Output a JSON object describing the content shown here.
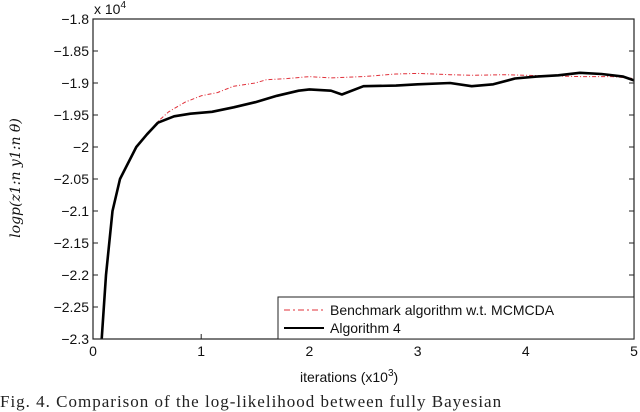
{
  "chart_data": {
    "type": "line",
    "title": "",
    "xlabel": "iterations (x10^3)",
    "xlabel_main": "iterations (x10",
    "xlabel_sup": "3",
    "xlabel_end": ")",
    "ylabel": "log p(z_{1:n} y_{1:n} θ)",
    "ylabel_text": "logp(z1:n y1:n θ)",
    "y_multiplier": "x 10",
    "y_multiplier_exp": "4",
    "xlim": [
      0,
      5
    ],
    "ylim": [
      -2.3,
      -1.8
    ],
    "xticks": [
      "0",
      "1",
      "2",
      "3",
      "4",
      "5"
    ],
    "yticks": [
      "-1.8",
      "-1.85",
      "-1.9",
      "-1.95",
      "-2",
      "-2.05",
      "-2.1",
      "-2.15",
      "-2.2",
      "-2.25",
      "-2.3"
    ],
    "grid": false,
    "legend_position": "lower right",
    "series": [
      {
        "name": "Benchmark algorithm w.t. MCMCDA",
        "color": "#e0303a",
        "style": "dash-dot",
        "x": [
          0.08,
          0.12,
          0.18,
          0.25,
          0.4,
          0.5,
          0.6,
          0.7,
          0.85,
          1.0,
          1.15,
          1.3,
          1.5,
          1.6,
          1.8,
          2.0,
          2.2,
          2.5,
          2.8,
          3.0,
          3.3,
          3.5,
          3.8,
          4.0,
          4.3,
          4.5,
          4.8,
          5.0
        ],
        "values": [
          -2.3,
          -2.2,
          -2.1,
          -2.05,
          -2.0,
          -1.98,
          -1.96,
          -1.945,
          -1.93,
          -1.92,
          -1.915,
          -1.905,
          -1.9,
          -1.895,
          -1.893,
          -1.89,
          -1.892,
          -1.89,
          -1.886,
          -1.885,
          -1.887,
          -1.888,
          -1.887,
          -1.888,
          -1.889,
          -1.89,
          -1.89,
          -1.893
        ]
      },
      {
        "name": "Algorithm 4",
        "color": "#000000",
        "style": "solid",
        "x": [
          0.08,
          0.12,
          0.18,
          0.25,
          0.4,
          0.5,
          0.6,
          0.75,
          0.9,
          1.1,
          1.3,
          1.5,
          1.7,
          1.9,
          2.0,
          2.2,
          2.3,
          2.5,
          2.8,
          3.0,
          3.3,
          3.5,
          3.7,
          3.9,
          4.1,
          4.3,
          4.5,
          4.7,
          4.9,
          5.0
        ],
        "values": [
          -2.3,
          -2.2,
          -2.1,
          -2.05,
          -2.0,
          -1.98,
          -1.962,
          -1.952,
          -1.948,
          -1.945,
          -1.938,
          -1.93,
          -1.92,
          -1.912,
          -1.91,
          -1.912,
          -1.918,
          -1.905,
          -1.904,
          -1.902,
          -1.9,
          -1.905,
          -1.902,
          -1.893,
          -1.89,
          -1.888,
          -1.884,
          -1.886,
          -1.89,
          -1.896
        ]
      }
    ]
  },
  "legend": {
    "items": [
      {
        "label": "Benchmark algorithm w.t. MCMCDA"
      },
      {
        "label": "Algorithm 4"
      }
    ]
  },
  "caption": {
    "text": "Fig. 4.  Comparison of the log-likelihood between fully Bayesian"
  }
}
